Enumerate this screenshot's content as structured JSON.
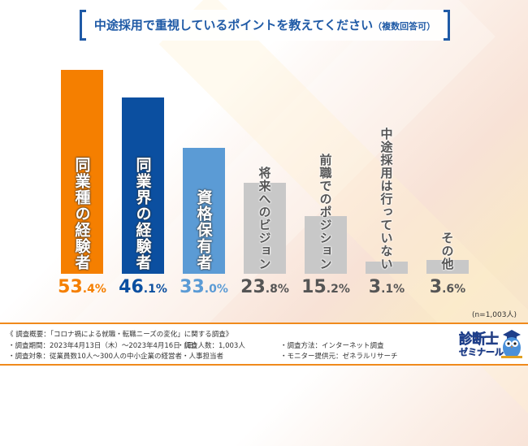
{
  "title": {
    "main": "中途採用で重視しているポイントを教えてください",
    "sub": "（複数回答可）"
  },
  "chart_data": {
    "type": "bar",
    "title": "中途採用で重視しているポイントを教えてください（複数回答可）",
    "categories": [
      "同業種の経験者",
      "同業界の経験者",
      "資格保有者",
      "将来へのビジョン",
      "前職でのポジション",
      "中途採用は行っていない",
      "その他"
    ],
    "values": [
      53.4,
      46.1,
      33.0,
      23.8,
      15.2,
      3.1,
      3.6
    ],
    "value_labels": [
      {
        "int": "53",
        "dec": ".4%"
      },
      {
        "int": "46",
        "dec": ".1%"
      },
      {
        "int": "33",
        "dec": ".0%"
      },
      {
        "int": "23",
        "dec": ".8%"
      },
      {
        "int": "15",
        "dec": ".2%"
      },
      {
        "int": "3",
        "dec": ".1%"
      },
      {
        "int": "3",
        "dec": ".6%"
      }
    ],
    "colors": [
      "#f57f00",
      "#0b4fa0",
      "#5b9bd5",
      "#c8c8c8",
      "#c8c8c8",
      "#c8c8c8",
      "#c8c8c8"
    ],
    "label_colors": [
      "#ffffff",
      "#ffffff",
      "#ffffff",
      "#555555",
      "#555555",
      "#555555",
      "#555555"
    ],
    "value_colors": [
      "#f57f00",
      "#0b4fa0",
      "#5b9bd5",
      "#555555",
      "#555555",
      "#555555",
      "#555555"
    ],
    "xlabel": "",
    "ylabel": "",
    "ylim": [
      0,
      53.4
    ],
    "grid": false,
    "legend": "none",
    "sample_note": "(n=1,003人)"
  },
  "footer": {
    "survey_title": "《 調査概要：「コロナ禍による就職・転職ニーズの変化」に関する調査》",
    "period": "・調査期間：2023年4月13日（木）～2023年4月16日（日）",
    "respondents": "・調査人数：1,003人",
    "method": "・調査方法：インターネット調査",
    "target": "・調査対象：従業員数10人～300人の中小企業の経営者・人事担当者",
    "provider": "・モニター提供元：ゼネラルリサーチ"
  },
  "logo": {
    "line1": "診断士",
    "line2": "ゼミナール"
  }
}
